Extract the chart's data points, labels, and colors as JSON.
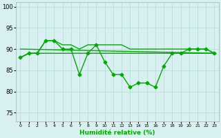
{
  "xlabel": "Humidité relative (%)",
  "xlim": [
    -0.5,
    23.5
  ],
  "ylim": [
    73,
    101
  ],
  "yticks": [
    75,
    80,
    85,
    90,
    95,
    100
  ],
  "xticks": [
    0,
    1,
    2,
    3,
    4,
    5,
    6,
    7,
    8,
    9,
    10,
    11,
    12,
    13,
    14,
    15,
    16,
    17,
    18,
    19,
    20,
    21,
    22,
    23
  ],
  "background_color": "#d9f0f0",
  "grid_color": "#b0d8d8",
  "line_color": "#00aa00",
  "series": [
    {
      "x": [
        0,
        1,
        2,
        3,
        4,
        5,
        6,
        7,
        8,
        9,
        10,
        11,
        12,
        13,
        14,
        15,
        16,
        17,
        18,
        19,
        20,
        21,
        22,
        23
      ],
      "y": [
        88,
        89,
        89,
        92,
        92,
        90,
        90,
        84,
        89,
        91,
        87,
        84,
        84,
        81,
        82,
        82,
        81,
        86,
        89,
        89,
        90,
        90,
        90,
        89
      ],
      "marker": "D",
      "markersize": 2.5,
      "lw": 1.0
    },
    {
      "x": [
        0,
        1,
        2,
        3,
        4,
        5,
        6,
        7,
        8,
        9,
        10,
        11,
        12,
        13,
        14,
        15,
        16,
        17,
        18,
        19,
        20,
        21,
        22,
        23
      ],
      "y": [
        88,
        89,
        89,
        92,
        92,
        91,
        91,
        90,
        91,
        91,
        91,
        91,
        91,
        90,
        90,
        90,
        90,
        90,
        90,
        90,
        90,
        90,
        90,
        89
      ],
      "marker": null,
      "lw": 1.0
    },
    {
      "x": [
        0,
        1,
        2,
        3,
        4,
        5,
        6,
        7,
        8,
        9,
        10,
        11,
        12,
        13,
        14,
        15,
        16,
        17,
        18,
        19,
        20,
        21,
        22,
        23
      ],
      "y": [
        88,
        89,
        89,
        89,
        89,
        89,
        89,
        89,
        89,
        89,
        89,
        89,
        89,
        89,
        89,
        89,
        89,
        89,
        89,
        89,
        89,
        89,
        89,
        89
      ],
      "marker": null,
      "lw": 1.0
    },
    {
      "x": [
        0,
        23
      ],
      "y": [
        90,
        89
      ],
      "marker": null,
      "lw": 1.0
    }
  ]
}
